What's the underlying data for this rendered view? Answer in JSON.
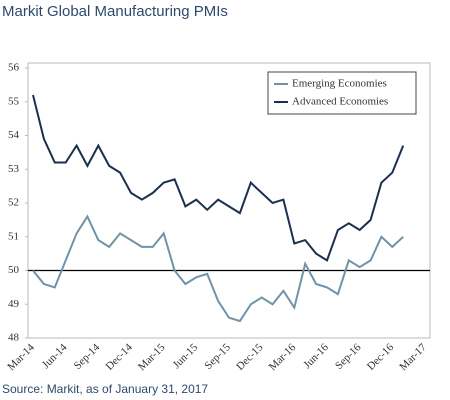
{
  "chart_data": {
    "type": "line",
    "title": "Markit Global Manufacturing PMIs",
    "source": "Source: Markit, as of January 31, 2017",
    "categories": [
      "Mar-14",
      null,
      null,
      "Jun-14",
      null,
      null,
      "Sep-14",
      null,
      null,
      "Dec-14",
      null,
      null,
      "Mar-15",
      null,
      null,
      "Jun-15",
      null,
      null,
      "Sep-15",
      null,
      null,
      "Dec-15",
      null,
      null,
      "Mar-16",
      null,
      null,
      "Jun-16",
      null,
      null,
      "Sep-16",
      null,
      null,
      "Dec-16",
      null,
      null,
      "Mar-17"
    ],
    "series": [
      {
        "name": "Emerging Economies",
        "color": "#6f93a8",
        "values": [
          50.0,
          49.6,
          49.5,
          50.3,
          51.1,
          51.6,
          50.9,
          50.7,
          51.1,
          50.9,
          50.7,
          50.7,
          51.1,
          50.0,
          49.6,
          49.8,
          49.9,
          49.1,
          48.6,
          48.5,
          49.0,
          49.2,
          49.0,
          49.4,
          48.9,
          50.2,
          49.6,
          49.5,
          49.3,
          50.3,
          50.1,
          50.3,
          51.0,
          50.7,
          51.0,
          null,
          null
        ]
      },
      {
        "name": "Advanced Economies",
        "color": "#1b2f4f",
        "values": [
          55.2,
          53.9,
          53.2,
          53.2,
          53.7,
          53.1,
          53.7,
          53.1,
          52.9,
          52.3,
          52.1,
          52.3,
          52.6,
          52.7,
          51.9,
          52.1,
          51.8,
          52.1,
          51.9,
          51.7,
          52.6,
          52.3,
          52.0,
          52.1,
          50.8,
          50.9,
          50.5,
          50.3,
          51.2,
          51.4,
          51.2,
          51.5,
          52.6,
          52.9,
          53.7,
          null,
          null
        ]
      }
    ],
    "reference_line": 50,
    "ylim": [
      48,
      56
    ],
    "yticks": [
      48,
      49,
      50,
      51,
      52,
      53,
      54,
      55,
      56
    ],
    "legend": "top-right"
  }
}
